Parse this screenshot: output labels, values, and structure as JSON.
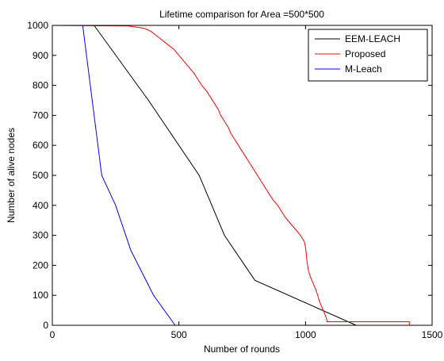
{
  "chart_data": {
    "type": "line",
    "title": "Lifetime comparison for Area =500*500",
    "xlabel": "Number of rounds",
    "ylabel": "Number of alive nodes",
    "xlim": [
      0,
      1500
    ],
    "ylim": [
      0,
      1000
    ],
    "xticks": [
      0,
      500,
      1000,
      1500
    ],
    "yticks": [
      0,
      100,
      200,
      300,
      400,
      500,
      600,
      700,
      800,
      900,
      1000
    ],
    "grid": false,
    "legend_position": "top-right",
    "series": [
      {
        "name": "EEM-LEACH",
        "color": "#000000",
        "points": [
          [
            165,
            1000
          ],
          [
            380,
            750
          ],
          [
            580,
            500
          ],
          [
            680,
            300
          ],
          [
            800,
            150
          ],
          [
            1200,
            0
          ]
        ]
      },
      {
        "name": "Proposed",
        "color": "#ff0000",
        "points": [
          [
            0,
            1000
          ],
          [
            300,
            998
          ],
          [
            350,
            992
          ],
          [
            370,
            988
          ],
          [
            390,
            980
          ],
          [
            420,
            960
          ],
          [
            450,
            940
          ],
          [
            480,
            920
          ],
          [
            500,
            900
          ],
          [
            520,
            880
          ],
          [
            540,
            860
          ],
          [
            560,
            840
          ],
          [
            575,
            820
          ],
          [
            590,
            800
          ],
          [
            610,
            780
          ],
          [
            625,
            760
          ],
          [
            640,
            740
          ],
          [
            655,
            720
          ],
          [
            665,
            700
          ],
          [
            680,
            680
          ],
          [
            695,
            660
          ],
          [
            705,
            640
          ],
          [
            720,
            620
          ],
          [
            735,
            600
          ],
          [
            750,
            580
          ],
          [
            765,
            560
          ],
          [
            780,
            540
          ],
          [
            795,
            520
          ],
          [
            810,
            500
          ],
          [
            825,
            480
          ],
          [
            840,
            460
          ],
          [
            855,
            440
          ],
          [
            870,
            420
          ],
          [
            890,
            400
          ],
          [
            905,
            380
          ],
          [
            920,
            360
          ],
          [
            940,
            340
          ],
          [
            960,
            320
          ],
          [
            980,
            300
          ],
          [
            995,
            280
          ],
          [
            1000,
            260
          ],
          [
            1003,
            240
          ],
          [
            1005,
            220
          ],
          [
            1008,
            200
          ],
          [
            1012,
            180
          ],
          [
            1020,
            160
          ],
          [
            1030,
            140
          ],
          [
            1040,
            120
          ],
          [
            1048,
            100
          ],
          [
            1055,
            80
          ],
          [
            1065,
            60
          ],
          [
            1075,
            40
          ],
          [
            1082,
            25
          ],
          [
            1085,
            12
          ],
          [
            1410,
            12
          ],
          [
            1410,
            0
          ]
        ]
      },
      {
        "name": "M-Leach",
        "color": "#0000ff",
        "points": [
          [
            120,
            1000
          ],
          [
            195,
            500
          ],
          [
            250,
            400
          ],
          [
            310,
            250
          ],
          [
            400,
            100
          ],
          [
            485,
            0
          ]
        ]
      }
    ]
  }
}
